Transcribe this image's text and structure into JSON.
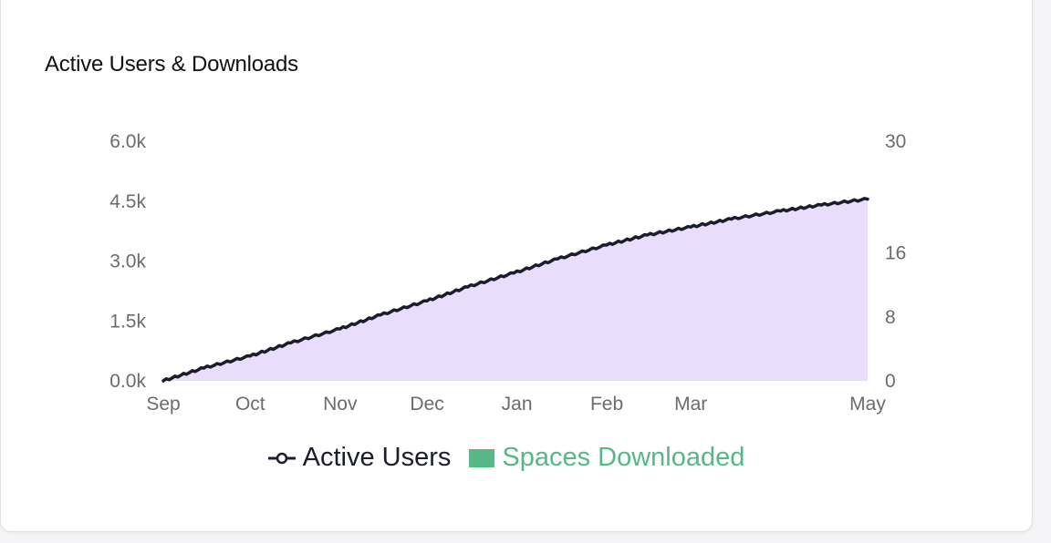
{
  "card": {
    "title": "Active Users & Downloads"
  },
  "colors": {
    "line": "#1b1d2e",
    "area_fill": "#e8defc",
    "spaces": "#56b886",
    "tick_text": "#6b6b70"
  },
  "chart_data": {
    "type": "area",
    "title": "Active Users & Downloads",
    "x_ticks": [
      "Sep",
      "Oct",
      "Nov",
      "Dec",
      "Jan",
      "Feb",
      "Mar",
      "May"
    ],
    "y_left_ticks": [
      "6.0k",
      "4.5k",
      "3.0k",
      "1.5k",
      "0.0k"
    ],
    "y_left_range": [
      0,
      6000
    ],
    "y_right_ticks": [
      "30",
      "16",
      "8",
      "0"
    ],
    "y_right_range": [
      0,
      30
    ],
    "grid": false,
    "legend_position": "bottom-center",
    "series": [
      {
        "name": "Active Users",
        "axis": "left",
        "style": "line-with-area",
        "x": [
          "2023-09-01",
          "2023-09-15",
          "2023-10-01",
          "2023-10-15",
          "2023-11-01",
          "2023-11-15",
          "2023-12-01",
          "2023-12-15",
          "2023-12-31",
          "2024-01-15",
          "2024-02-01",
          "2024-02-15",
          "2024-03-01",
          "2024-03-15",
          "2024-04-01",
          "2024-04-15",
          "2024-05-01"
        ],
        "values": [
          0,
          320,
          620,
          950,
          1300,
          1650,
          2000,
          2350,
          2700,
          3050,
          3400,
          3650,
          3850,
          4050,
          4250,
          4400,
          4550
        ]
      },
      {
        "name": "Spaces Downloaded",
        "axis": "right",
        "style": "bar",
        "values": []
      }
    ]
  },
  "legend": {
    "active_users": "Active Users",
    "spaces_downloaded": "Spaces Downloaded"
  }
}
